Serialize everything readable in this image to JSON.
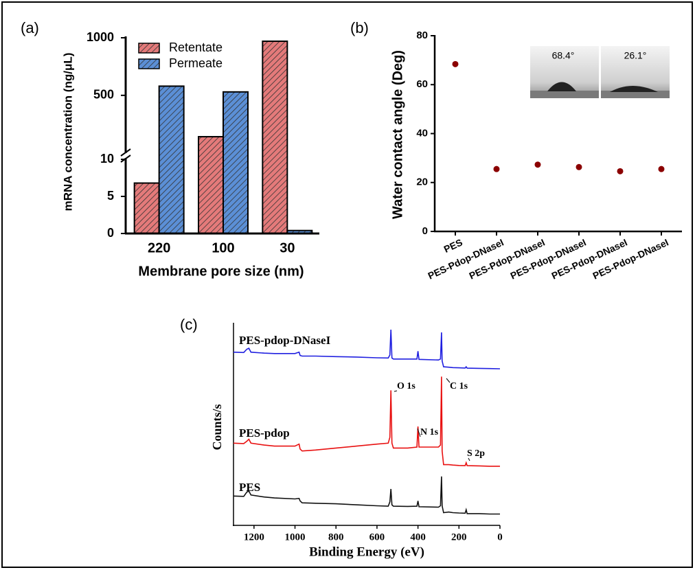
{
  "chart_data": [
    {
      "type": "bar",
      "panel_label": "(a)",
      "x_label": "Membrane pore size (nm)",
      "y_label": "mRNA concentration (ng/μL)",
      "categories": [
        "220",
        "100",
        "30"
      ],
      "series": [
        {
          "name": "Retentate",
          "color": "#e47a7a",
          "values": [
            6.8,
            141,
            970
          ]
        },
        {
          "name": "Permeate",
          "color": "#5b8fd6",
          "values": [
            580,
            530,
            0.4
          ]
        }
      ],
      "ylim": [
        0,
        1000
      ],
      "yticks": [
        0,
        5,
        10,
        500,
        1000
      ],
      "ybreak": 10,
      "hatch": true,
      "legend": "upper left"
    },
    {
      "type": "scatter",
      "panel_label": "(b)",
      "y_label": "Water contact angle (Deg)",
      "categories": [
        "PES",
        "PES-Pdop-DNaseI",
        "PES-Pdop-DNaseI",
        "PES-Pdop-DNaseI",
        "PES-Pdop-DNaseI",
        "PES-Pdop-DNaseI"
      ],
      "values": [
        68.4,
        25.5,
        27.3,
        26.3,
        24.6,
        25.5
      ],
      "color": "#8b0000",
      "ylim": [
        0,
        80
      ],
      "yticks": [
        0,
        20,
        40,
        60,
        80
      ],
      "annotations": [
        "68.4°",
        "26.1°"
      ]
    },
    {
      "type": "line",
      "panel_label": "(c)",
      "x_label": "Binding Energy (eV)",
      "y_label": "Counts/s",
      "x": [
        1300,
        1250,
        1235,
        1225,
        1215,
        1150,
        1100,
        1000,
        980,
        975,
        965,
        900,
        800,
        700,
        600,
        545,
        537,
        532,
        527,
        520,
        450,
        405,
        400,
        395,
        300,
        290,
        285,
        282,
        275,
        250,
        230,
        200,
        170,
        165,
        160,
        100,
        50,
        0
      ],
      "series": [
        {
          "name": "PES-pdop-DNaseI",
          "color": "#1f1fe0",
          "values": [
            88.5,
            88.3,
            90,
            90.5,
            88.5,
            88,
            87.8,
            87.8,
            88.5,
            86.8,
            86.5,
            86.5,
            86.2,
            86,
            85.6,
            85.5,
            87,
            100,
            85.5,
            85,
            85,
            85,
            89,
            84.8,
            84.5,
            85,
            98.6,
            84,
            81,
            80.8,
            80.6,
            80.5,
            80.4,
            81,
            80.3,
            80.2,
            80.1,
            80
          ]
        },
        {
          "name": "PES-pdop",
          "color": "#e81010",
          "values": [
            42,
            41.8,
            43,
            44,
            42,
            41,
            40.5,
            40.5,
            41.5,
            39,
            38,
            38.5,
            39.5,
            40.5,
            41.5,
            42,
            45,
            69,
            42,
            39.5,
            39.5,
            40,
            50.5,
            40,
            40,
            41,
            76,
            38,
            31,
            31,
            30.8,
            30.6,
            30.5,
            32,
            30.5,
            30.4,
            30.2,
            30.2
          ]
        },
        {
          "name": "PES",
          "color": "#111111",
          "values": [
            15,
            14.8,
            17,
            17.5,
            15.5,
            14.5,
            14,
            13.5,
            13.8,
            12.5,
            11.5,
            11.3,
            11,
            10.5,
            10,
            9.8,
            12,
            18.6,
            10.5,
            9.8,
            9.7,
            9.8,
            12.5,
            9.5,
            9.3,
            10,
            25,
            10,
            6.5,
            6.8,
            6.5,
            6.3,
            6.2,
            8,
            6,
            6,
            5.8,
            5.8
          ]
        }
      ],
      "xlim": [
        1300,
        0
      ],
      "xticks": [
        1200,
        1000,
        800,
        600,
        400,
        200,
        0
      ],
      "ylim": [
        0,
        100
      ],
      "annotations": [
        "O 1s",
        "C 1s",
        "N 1s",
        "S 2p"
      ]
    }
  ]
}
